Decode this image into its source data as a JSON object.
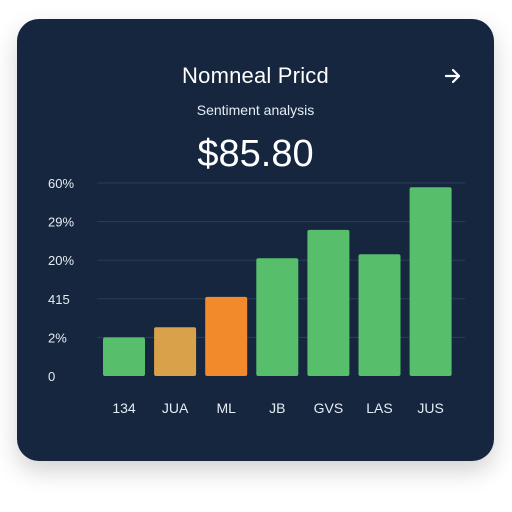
{
  "card": {
    "title": "Nomneal Pricd",
    "subtitle": "Sentiment analysis",
    "price": "$85.80",
    "action_icon": "arrow-right-icon"
  },
  "chart_data": {
    "type": "bar",
    "categories": [
      "134",
      "JUA",
      "ML",
      "JB",
      "GVS",
      "LAS",
      "JUS"
    ],
    "values": [
      19,
      24,
      39,
      58,
      72,
      60,
      93
    ],
    "y_tick_labels": [
      "60%",
      "29%",
      "20%",
      "415",
      "2%",
      "0"
    ],
    "colors": [
      "#57bf6b",
      "#d9a24a",
      "#f28a2c",
      "#57bf6b",
      "#57bf6b",
      "#57bf6b",
      "#57bf6b"
    ],
    "background": "#15263e",
    "grid": true
  }
}
